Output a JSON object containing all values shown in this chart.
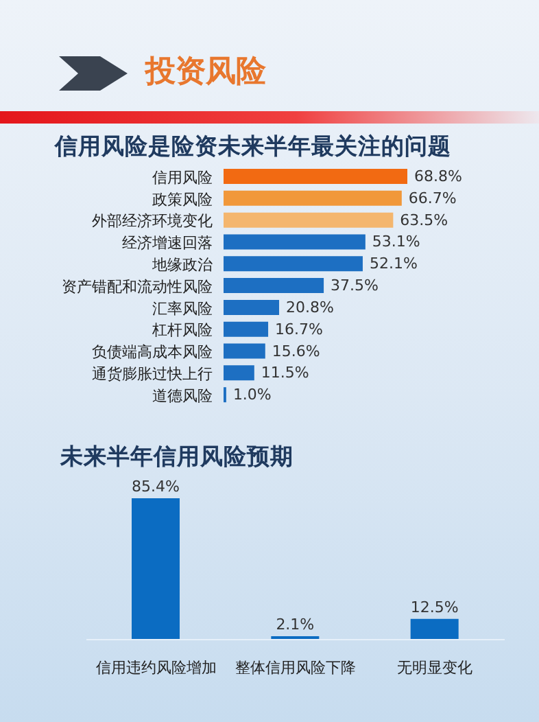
{
  "chart_data": [
    {
      "type": "bar",
      "title": "投资风险",
      "subtitle": "信用风险是险资未来半年最关注的问题",
      "orientation": "horizontal",
      "categories": [
        "信用风险",
        "政策风险",
        "外部经济环境变化",
        "经济增速回落",
        "地缘政治",
        "资产错配和流动性风险",
        "汇率风险",
        "杠杆风险",
        "负债端高成本风险",
        "通货膨胀过快上行",
        "道德风险"
      ],
      "values": [
        68.8,
        66.7,
        63.5,
        53.1,
        52.1,
        37.5,
        20.8,
        16.7,
        15.6,
        11.5,
        1.0
      ],
      "value_labels": [
        "68.8%",
        "66.7%",
        "63.5%",
        "53.1%",
        "52.1%",
        "37.5%",
        "20.8%",
        "16.7%",
        "15.6%",
        "11.5%",
        "1.0%"
      ],
      "colors": [
        "#f26a12",
        "#f1983a",
        "#f4b66e",
        "#1d6fc2",
        "#1d6fc2",
        "#1d6fc2",
        "#1d6fc2",
        "#1d6fc2",
        "#1d6fc2",
        "#1d6fc2",
        "#1d6fc2"
      ]
    },
    {
      "type": "bar",
      "title": "未来半年信用风险预期",
      "categories": [
        "信用违约风险增加",
        "整体信用风险下降",
        "无明显变化"
      ],
      "values": [
        85.4,
        2.1,
        12.5
      ],
      "value_labels": [
        "85.4%",
        "2.1%",
        "12.5%"
      ],
      "color": "#0b6cc2"
    }
  ]
}
